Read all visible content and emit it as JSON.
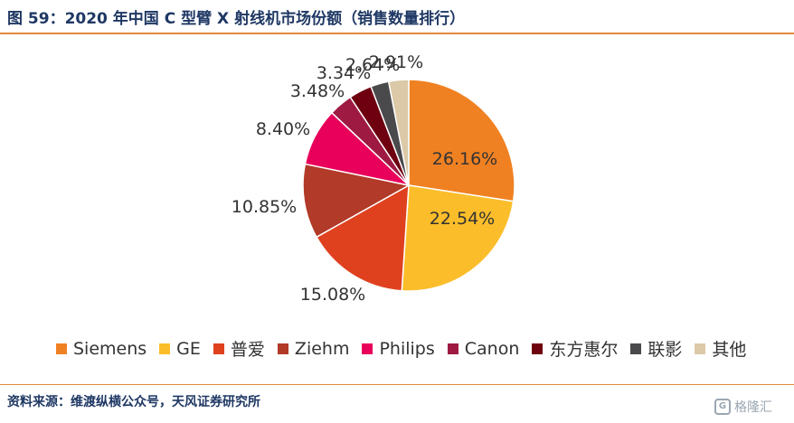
{
  "header": {
    "title": "图 59：2020 年中国 C 型臂 X 射线机市场份额（销售数量排行）"
  },
  "footer": {
    "source": "资料来源：维渡纵横公众号，天风证券研究所",
    "watermark": "格隆汇",
    "watermark_logo": "G"
  },
  "chart_data": {
    "type": "pie",
    "title": "图 59：2020 年中国 C 型臂 X 射线机市场份额（销售数量排行）",
    "start_angle": "12 o'clock",
    "direction": "clockwise",
    "legend_position": "bottom",
    "slices": [
      {
        "name": "Siemens",
        "value": 26.16,
        "label": "26.16%",
        "color": "#f08122"
      },
      {
        "name": "GE",
        "value": 22.54,
        "label": "22.54%",
        "color": "#fbbd2a"
      },
      {
        "name": "普爱",
        "value": 15.08,
        "label": "15.08%",
        "color": "#df411f"
      },
      {
        "name": "Ziehm",
        "value": 10.85,
        "label": "10.85%",
        "color": "#b13a28"
      },
      {
        "name": "Philips",
        "value": 8.4,
        "label": "8.40%",
        "color": "#e8005a"
      },
      {
        "name": "Canon",
        "value": 3.48,
        "label": "3.48%",
        "color": "#9e1a43"
      },
      {
        "name": "东方惠尔",
        "value": 3.34,
        "label": "3.34%",
        "color": "#6e0010"
      },
      {
        "name": "联影",
        "value": 2.64,
        "label": "2.64%",
        "color": "#4a4a4d"
      },
      {
        "name": "其他",
        "value": 2.91,
        "label": "2.91%",
        "color": "#dbc9a8"
      }
    ]
  }
}
